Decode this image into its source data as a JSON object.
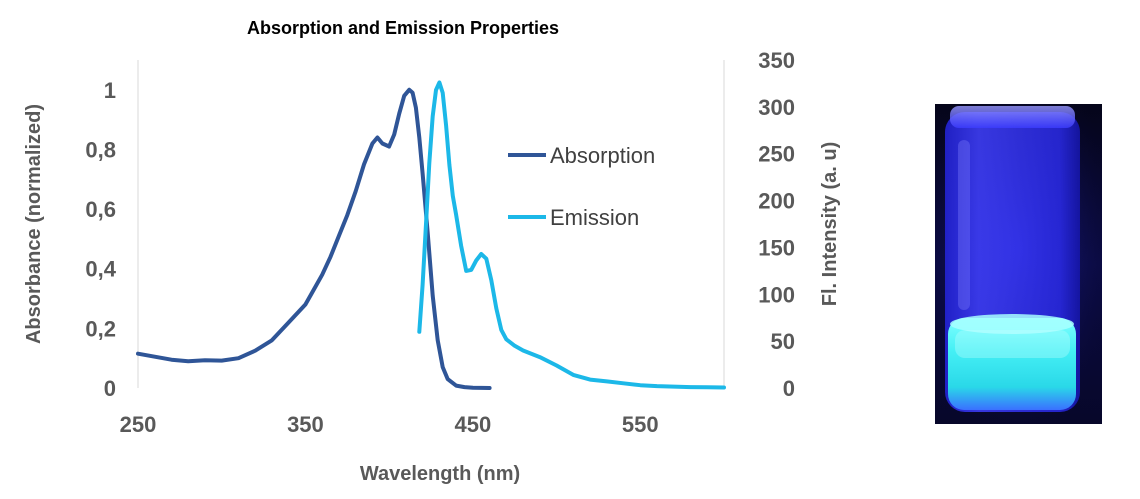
{
  "chart_data": {
    "type": "line",
    "title": "Absorption and Emission Properties",
    "xlabel": "Wavelength (nm)",
    "ylabel": "Absorbance (normalized)",
    "y2label": "Fl. Intensity (a. u)",
    "xlim": [
      250,
      600
    ],
    "ylim": [
      0,
      1.1
    ],
    "y2lim": [
      0,
      350
    ],
    "x_ticks": [
      "250",
      "350",
      "450",
      "550"
    ],
    "x_tick_values": [
      250,
      350,
      450,
      550
    ],
    "y_ticks": [
      "0",
      "0,2",
      "0,4",
      "0,6",
      "0,8",
      "1"
    ],
    "y_tick_values": [
      0,
      0.2,
      0.4,
      0.6,
      0.8,
      1
    ],
    "y2_ticks": [
      "0",
      "50",
      "100",
      "150",
      "200",
      "250",
      "300",
      "350"
    ],
    "y2_tick_values": [
      0,
      50,
      100,
      150,
      200,
      250,
      300,
      350
    ],
    "grid": false,
    "legend_position": "right",
    "series": [
      {
        "name": "Absorption",
        "axis": "left",
        "color": "#2F5597",
        "x": [
          250,
          260,
          270,
          280,
          290,
          300,
          310,
          320,
          330,
          340,
          350,
          355,
          360,
          365,
          370,
          375,
          380,
          385,
          390,
          393,
          396,
          400,
          403,
          406,
          409,
          412,
          414,
          416,
          418,
          420,
          423,
          426,
          429,
          432,
          435,
          440,
          445,
          450,
          460
        ],
        "y": [
          0.115,
          0.105,
          0.095,
          0.09,
          0.093,
          0.092,
          0.1,
          0.125,
          0.16,
          0.22,
          0.28,
          0.33,
          0.38,
          0.44,
          0.51,
          0.58,
          0.66,
          0.75,
          0.82,
          0.84,
          0.82,
          0.81,
          0.85,
          0.92,
          0.98,
          1.0,
          0.99,
          0.94,
          0.84,
          0.72,
          0.52,
          0.31,
          0.16,
          0.07,
          0.03,
          0.008,
          0.003,
          0.001,
          0.0
        ]
      },
      {
        "name": "Emission",
        "axis": "right",
        "color": "#1CB8E8",
        "x": [
          418,
          420,
          422,
          424,
          426,
          428,
          430,
          432,
          434,
          436,
          438,
          440,
          443,
          446,
          449,
          452,
          455,
          458,
          461,
          464,
          467,
          470,
          475,
          480,
          490,
          500,
          510,
          520,
          530,
          540,
          550,
          560,
          570,
          580,
          590,
          600
        ],
        "y": [
          60,
          110,
          175,
          240,
          290,
          318,
          326,
          315,
          280,
          238,
          205,
          185,
          152,
          125,
          126,
          136,
          143,
          138,
          115,
          85,
          62,
          52,
          45,
          40,
          33,
          24,
          14,
          9,
          7,
          5,
          3,
          2,
          1.5,
          1,
          0.8,
          0.5
        ]
      }
    ]
  },
  "photo": {
    "name": "vial-photo"
  }
}
